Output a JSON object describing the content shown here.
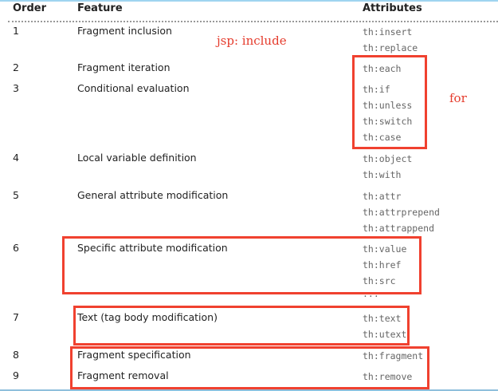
{
  "header": {
    "order": "Order",
    "feature": "Feature",
    "attributes": "Attributes"
  },
  "rows": [
    {
      "order": "1",
      "feature": "Fragment inclusion",
      "attributes": [
        "th:insert",
        "th:replace"
      ]
    },
    {
      "order": "2",
      "feature": "Fragment iteration",
      "attributes": [
        "th:each"
      ]
    },
    {
      "order": "3",
      "feature": "Conditional evaluation",
      "attributes": [
        "th:if",
        "th:unless",
        "th:switch",
        "th:case"
      ]
    },
    {
      "order": "4",
      "feature": "Local variable definition",
      "attributes": [
        "th:object",
        "th:with"
      ]
    },
    {
      "order": "5",
      "feature": "General attribute modification",
      "attributes": [
        "th:attr",
        "th:attrprepend",
        "th:attrappend"
      ]
    },
    {
      "order": "6",
      "feature": "Specific attribute modification",
      "attributes": [
        "th:value",
        "th:href",
        "th:src",
        "..."
      ]
    },
    {
      "order": "7",
      "feature": "Text (tag body modification)",
      "attributes": [
        "th:text",
        "th:utext"
      ]
    },
    {
      "order": "8",
      "feature": "Fragment specification",
      "attributes": [
        "th:fragment"
      ]
    },
    {
      "order": "9",
      "feature": "Fragment removal",
      "attributes": [
        "th:remove"
      ]
    }
  ],
  "annotations": {
    "jsp_include": "jsp: include",
    "for": "for"
  },
  "colors": {
    "highlight": "#f0412f"
  }
}
